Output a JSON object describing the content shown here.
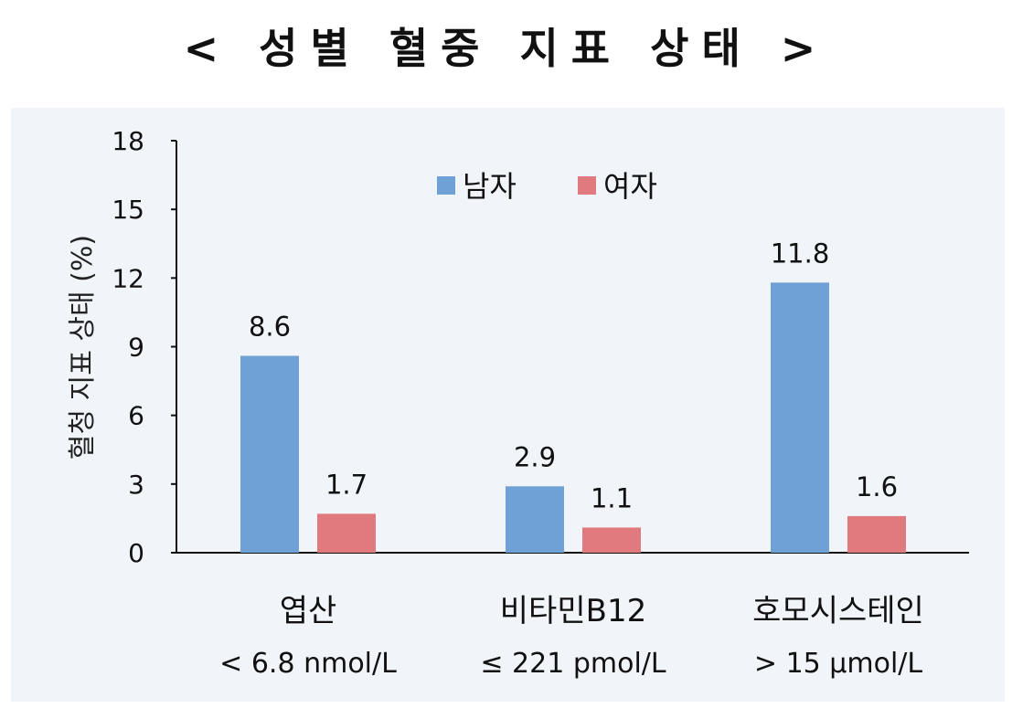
{
  "title": "< 성별 혈중 지표 상태 >",
  "chart_data": {
    "type": "bar",
    "ylabel": "혈청 지표 상태 (%)",
    "ylim": [
      0,
      18
    ],
    "yticks": [
      "0",
      "3",
      "6",
      "9",
      "12",
      "15",
      "18"
    ],
    "categories": [
      "엽산",
      "비타민B12",
      "호모시스테인"
    ],
    "category_sublabels": [
      "< 6.8 nmol/L",
      "≤ 221 pmol/L",
      "> 15 μmol/L"
    ],
    "legend_position": "top",
    "series": [
      {
        "name": "남자",
        "color": "#6fa0d6",
        "values": [
          8.6,
          2.9,
          11.8
        ],
        "labels": [
          "8.6",
          "2.9",
          "11.8"
        ]
      },
      {
        "name": "여자",
        "color": "#e07a7e",
        "values": [
          1.7,
          1.1,
          1.6
        ],
        "labels": [
          "1.7",
          "1.1",
          "1.6"
        ]
      }
    ],
    "grid": false
  }
}
